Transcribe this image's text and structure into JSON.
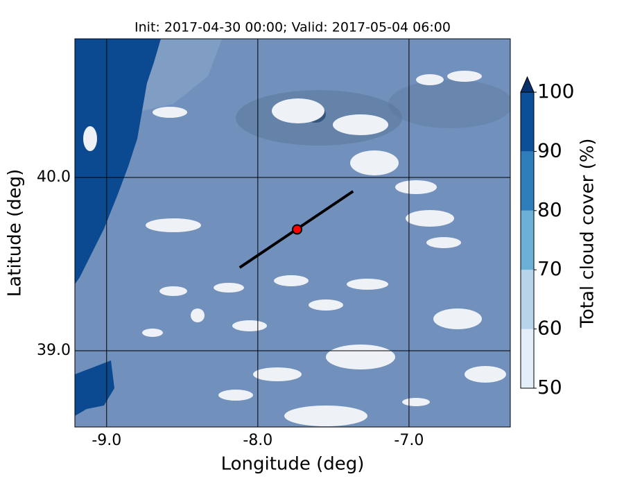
{
  "chart_data": {
    "type": "map",
    "title": "Init: 2017-04-30 00:00; Valid: 2017-05-04 06:00",
    "x_label": "Longitude (deg)",
    "y_label": "Latitude (deg)",
    "xlim": [
      -9.21,
      -6.33
    ],
    "ylim": [
      38.56,
      40.8
    ],
    "xticks": [
      {
        "value": -9,
        "label": "-9.0"
      },
      {
        "value": -8,
        "label": "-8.0"
      },
      {
        "value": -7,
        "label": "-7.0"
      }
    ],
    "yticks": [
      {
        "value": 39,
        "label": "39.0"
      },
      {
        "value": 40,
        "label": "40.0"
      }
    ],
    "grid": true,
    "section": {
      "x": [
        -8.12,
        -7.37
      ],
      "y": [
        39.48,
        39.92
      ],
      "color": "#000000"
    },
    "point": {
      "x": -7.74,
      "y": 39.7,
      "color": "#ff0000"
    },
    "colorbar": {
      "label": "Total cloud cover (%)",
      "lim": [
        50,
        100
      ],
      "ticks": [
        50,
        60,
        70,
        80,
        90,
        100
      ],
      "levels": [
        50,
        60,
        70,
        80,
        90,
        100
      ],
      "colors": [
        "#e3eef9",
        "#b7d4ea",
        "#6baed6",
        "#2f7ebc",
        "#0b4f96"
      ],
      "extend_color": "#08306b"
    }
  }
}
